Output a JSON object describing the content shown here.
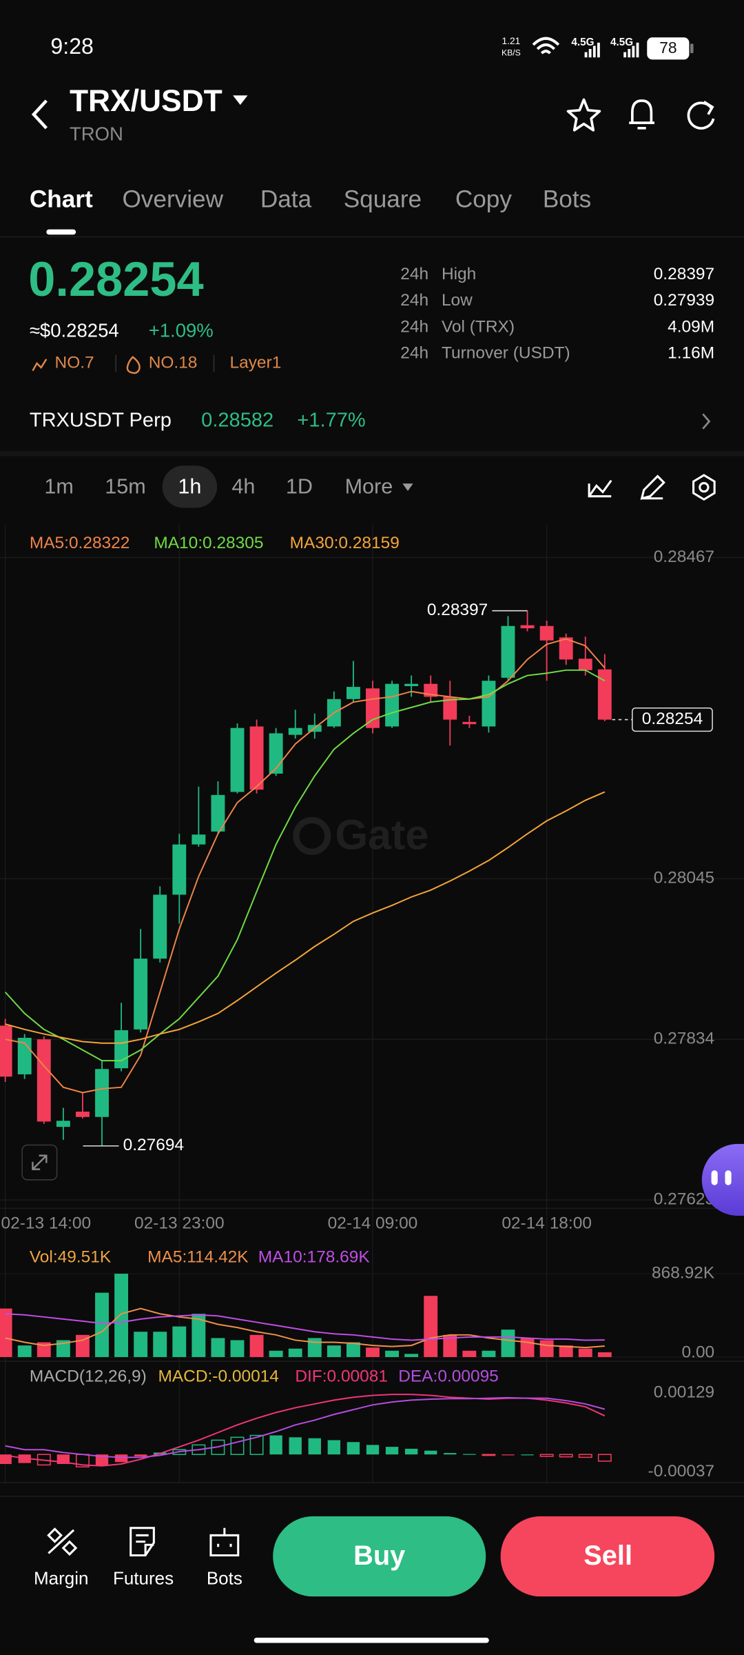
{
  "status_bar": {
    "time": "9:28",
    "net_speed": "1.21",
    "net_unit": "KB/S",
    "network_1": "4.5G",
    "network_2": "4.5G",
    "battery": "78"
  },
  "header": {
    "pair": "TRX/USDT",
    "name": "TRON"
  },
  "tabs": {
    "items": [
      "Chart",
      "Overview",
      "Data",
      "Square",
      "Copy",
      "Bots"
    ],
    "active": 0
  },
  "ticker": {
    "price": "0.28254",
    "usd_price": "≈$0.28254",
    "change": "+1.09%",
    "tags": [
      "NO.7",
      "NO.18",
      "Layer1"
    ]
  },
  "stats": [
    {
      "period": "24h",
      "label": "High",
      "value": "0.28397"
    },
    {
      "period": "24h",
      "label": "Low",
      "value": "0.27939"
    },
    {
      "period": "24h",
      "label": "Vol (TRX)",
      "value": "4.09M"
    },
    {
      "period": "24h",
      "label": "Turnover (USDT)",
      "value": "1.16M"
    }
  ],
  "perp": {
    "name": "TRXUSDT Perp",
    "price": "0.28582",
    "change": "+1.77%"
  },
  "intervals": {
    "items": [
      "1m",
      "15m",
      "1h",
      "4h",
      "1D",
      "More"
    ],
    "active": 2
  },
  "chart_data": [
    {
      "type": "candlestick",
      "watermark": "Gate",
      "grid": true,
      "up_color": "#20b981",
      "down_color": "#f23c5a",
      "categories": [
        "02-13 14:00",
        null,
        null,
        null,
        null,
        null,
        null,
        null,
        null,
        "02-13 23:00",
        null,
        null,
        null,
        null,
        null,
        null,
        null,
        null,
        null,
        "02-14 09:00",
        null,
        null,
        null,
        null,
        null,
        null,
        null,
        null,
        "02-14 18:00",
        null,
        null,
        null
      ],
      "open": [
        0.27852,
        0.27788,
        0.27834,
        0.27719,
        0.27739,
        0.27732,
        0.27796,
        0.27847,
        0.2794,
        0.28024,
        0.2809,
        0.28107,
        0.28159,
        0.28245,
        0.28183,
        0.28234,
        0.28238,
        0.28245,
        0.28281,
        0.28295,
        0.28245,
        0.28298,
        0.28301,
        0.28284,
        0.28251,
        0.28245,
        0.28309,
        0.28378,
        0.28377,
        0.28362,
        0.28334,
        0.2832
      ],
      "high": [
        0.27861,
        0.27841,
        0.27838,
        0.27744,
        0.27764,
        0.27806,
        0.27882,
        0.27979,
        0.28035,
        0.28104,
        0.28166,
        0.28173,
        0.28249,
        0.28254,
        0.28243,
        0.28267,
        0.28262,
        0.28291,
        0.28331,
        0.28305,
        0.28305,
        0.28312,
        0.28312,
        0.28305,
        0.28259,
        0.28312,
        0.2839,
        0.28397,
        0.28384,
        0.28367,
        0.28363,
        0.2834
      ],
      "low": [
        0.27778,
        0.27782,
        0.27723,
        0.27702,
        0.2773,
        0.27694,
        0.27792,
        0.27843,
        0.27935,
        0.27986,
        0.28087,
        0.28104,
        0.28157,
        0.28157,
        0.2818,
        0.28229,
        0.28229,
        0.28243,
        0.28277,
        0.28236,
        0.28243,
        0.28284,
        0.28277,
        0.2822,
        0.28243,
        0.28237,
        0.28305,
        0.2837,
        0.28305,
        0.28326,
        0.28312,
        0.28252
      ],
      "close": [
        0.27785,
        0.27836,
        0.27726,
        0.27727,
        0.27732,
        0.27795,
        0.27846,
        0.2794,
        0.28024,
        0.2809,
        0.28103,
        0.28155,
        0.28243,
        0.28162,
        0.28236,
        0.28243,
        0.28247,
        0.28281,
        0.28297,
        0.28243,
        0.28301,
        0.28301,
        0.28284,
        0.28254,
        0.28248,
        0.28305,
        0.28377,
        0.28374,
        0.28358,
        0.28333,
        0.28319,
        0.28254
      ],
      "ma": [
        {
          "name": "MA5:0.28322",
          "color": "#f0844a",
          "values": [
            0.27834,
            0.27829,
            0.27799,
            0.27771,
            0.27764,
            0.27769,
            0.27771,
            0.27813,
            0.27896,
            0.27979,
            0.28048,
            0.28104,
            0.28145,
            0.28166,
            0.2819,
            0.28222,
            0.28243,
            0.28263,
            0.28277,
            0.28281,
            0.28284,
            0.28291,
            0.28287,
            0.28284,
            0.28281,
            0.28284,
            0.28305,
            0.28333,
            0.28353,
            0.2836,
            0.28351,
            0.28322
          ]
        },
        {
          "name": "MA10:0.28305",
          "color": "#6fdc45",
          "values": [
            0.27896,
            0.27868,
            0.27847,
            0.27834,
            0.2782,
            0.27806,
            0.27806,
            0.2782,
            0.27841,
            0.27861,
            0.27889,
            0.27917,
            0.27965,
            0.28028,
            0.2809,
            0.28139,
            0.2818,
            0.28215,
            0.28236,
            0.28254,
            0.28263,
            0.2827,
            0.28277,
            0.2828,
            0.28281,
            0.28287,
            0.28301,
            0.28312,
            0.28315,
            0.28319,
            0.28319,
            0.28305
          ]
        },
        {
          "name": "MA30:0.28159",
          "color": "#f5a53a",
          "values": [
            0.27854,
            0.27847,
            0.27841,
            0.27836,
            0.27831,
            0.27829,
            0.27829,
            0.27834,
            0.27841,
            0.27847,
            0.27857,
            0.27868,
            0.27885,
            0.27903,
            0.27921,
            0.27938,
            0.27956,
            0.27972,
            0.27989,
            0.28,
            0.2801,
            0.28021,
            0.2803,
            0.28042,
            0.28055,
            0.28069,
            0.28086,
            0.28104,
            0.28121,
            0.28134,
            0.28148,
            0.28159
          ]
        }
      ],
      "ylim": [
        0.27612,
        0.2851
      ],
      "yticks": [
        0.28467,
        0.28045,
        0.27834,
        0.27623
      ],
      "last_price": 0.28254,
      "high_marker": 0.28397,
      "low_marker": 0.27694
    },
    {
      "type": "volume",
      "series": [
        {
          "name": "Vol:49.51K",
          "color": "#f0a444",
          "values": [
            506000,
            121000,
            154000,
            176000,
            231000,
            671000,
            869000,
            264000,
            264000,
            319000,
            451000,
            198000,
            176000,
            231000,
            66000,
            88000,
            198000,
            121000,
            154000,
            99000,
            66000,
            33000,
            638000,
            231000,
            66000,
            66000,
            286000,
            198000,
            176000,
            121000,
            88000,
            49510
          ]
        },
        {
          "name": "MA5:114.42K",
          "color": "#f0904a",
          "values": [
            198000,
            154000,
            121000,
            143000,
            176000,
            264000,
            451000,
            506000,
            451000,
            418000,
            396000,
            341000,
            308000,
            264000,
            231000,
            176000,
            154000,
            154000,
            143000,
            121000,
            110000,
            121000,
            198000,
            231000,
            231000,
            198000,
            176000,
            154000,
            121000,
            110000,
            99000,
            114420
          ]
        },
        {
          "name": "MA10:178.69K",
          "color": "#c04ee6",
          "values": [
            451000,
            440000,
            418000,
            396000,
            374000,
            352000,
            363000,
            396000,
            418000,
            429000,
            440000,
            429000,
            396000,
            363000,
            330000,
            297000,
            264000,
            242000,
            231000,
            209000,
            187000,
            176000,
            187000,
            198000,
            209000,
            209000,
            209000,
            198000,
            187000,
            187000,
            176000,
            178690
          ]
        }
      ],
      "ylim": [
        0,
        946000
      ],
      "yticks": [
        {
          "value": 868920,
          "label": "868.92K"
        },
        {
          "value": 0,
          "label": "0.00"
        }
      ]
    },
    {
      "type": "macd",
      "title": "MACD(12,26,9)",
      "series": [
        {
          "name": "MACD:-0.00014",
          "color": "#e8b83a",
          "values": [
            -0.0002,
            -0.00018,
            -0.00022,
            -0.0002,
            -0.00026,
            -0.00024,
            -0.00016,
            -4e-05,
            4e-05,
            0.0001,
            0.0002,
            0.0003,
            0.00036,
            0.0004,
            0.0004,
            0.00036,
            0.00034,
            0.0003,
            0.00026,
            0.0002,
            0.00016,
            0.00012,
            8e-05,
            3e-05,
            1e-05,
            -2e-05,
            -1e-05,
            0,
            -4e-05,
            -5e-05,
            -6e-05,
            -0.00014
          ]
        },
        {
          "name": "DIF:0.00081",
          "color": "#f0357a",
          "values": [
            -2e-05,
            -8e-05,
            -0.00012,
            -0.00016,
            -0.00022,
            -0.00024,
            -0.0002,
            -0.0001,
            2e-05,
            0.00016,
            0.0003,
            0.00046,
            0.00062,
            0.00076,
            0.00088,
            0.00098,
            0.00106,
            0.00114,
            0.0012,
            0.00124,
            0.00126,
            0.00126,
            0.00124,
            0.0012,
            0.00118,
            0.00116,
            0.00118,
            0.00118,
            0.00114,
            0.00108,
            0.001,
            0.00081
          ]
        },
        {
          "name": "DEA:0.00095",
          "color": "#b54ee0",
          "values": [
            0.00018,
            0.0001,
            0.0001,
            4e-05,
            0,
            -4e-05,
            -6e-05,
            -6e-05,
            -2e-05,
            6e-05,
            0.0001,
            0.00016,
            0.00026,
            0.00036,
            0.00048,
            0.00062,
            0.00072,
            0.00084,
            0.00094,
            0.00104,
            0.0011,
            0.00114,
            0.00116,
            0.00117,
            0.00117,
            0.00118,
            0.00119,
            0.00118,
            0.00118,
            0.00113,
            0.00106,
            0.00095
          ]
        }
      ],
      "ylim": [
        -0.00059,
        0.0018
      ],
      "yticks": [
        0.00129,
        -0.00037
      ]
    }
  ],
  "bottom_bar": {
    "items": [
      "Margin",
      "Futures",
      "Bots"
    ],
    "buy": "Buy",
    "sell": "Sell"
  }
}
